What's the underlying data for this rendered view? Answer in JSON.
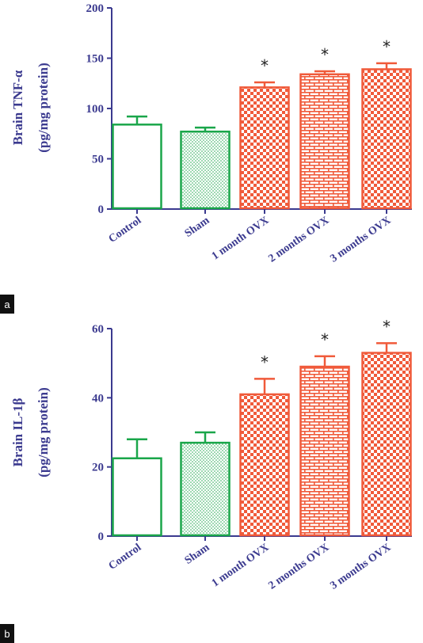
{
  "chart_data": [
    {
      "panel_label": "a",
      "type": "bar",
      "categories": [
        "Control",
        "Sham",
        "1 month OVX",
        "2 months OVX",
        "3 months OVX"
      ],
      "values": [
        84,
        77,
        121,
        134,
        139
      ],
      "errors": [
        8,
        4,
        5,
        3,
        6
      ],
      "significance": [
        "",
        "",
        "*",
        "*",
        "*"
      ],
      "ylabel_lines": [
        "Brain TNF-α",
        "(pg/mg protein)"
      ],
      "ylim": [
        0,
        200
      ],
      "yticks": [
        "0",
        "50",
        "100",
        "150",
        "200"
      ],
      "grid": false,
      "fills": [
        "none",
        "dots",
        "checker",
        "brick",
        "checker"
      ]
    },
    {
      "panel_label": "b",
      "type": "bar",
      "categories": [
        "Control",
        "Sham",
        "1 month OVX",
        "2 months OVX",
        "3 months OVX"
      ],
      "values": [
        22.5,
        27,
        41,
        49,
        53
      ],
      "errors": [
        5.5,
        3,
        4.5,
        3,
        2.8
      ],
      "significance": [
        "",
        "",
        "*",
        "*",
        "*"
      ],
      "ylabel_lines": [
        "Brain IL-1β",
        "(pg/mg protein)"
      ],
      "ylim": [
        0,
        60
      ],
      "yticks": [
        "0",
        "20",
        "40",
        "60"
      ],
      "grid": false,
      "fills": [
        "none",
        "dots",
        "checker",
        "brick",
        "checker"
      ]
    }
  ],
  "colors": {
    "axis": "#3b3a8f",
    "control_group": "#1aa64a",
    "ovx_group": "#f05a3a",
    "panel_label_bg": "#111111"
  }
}
